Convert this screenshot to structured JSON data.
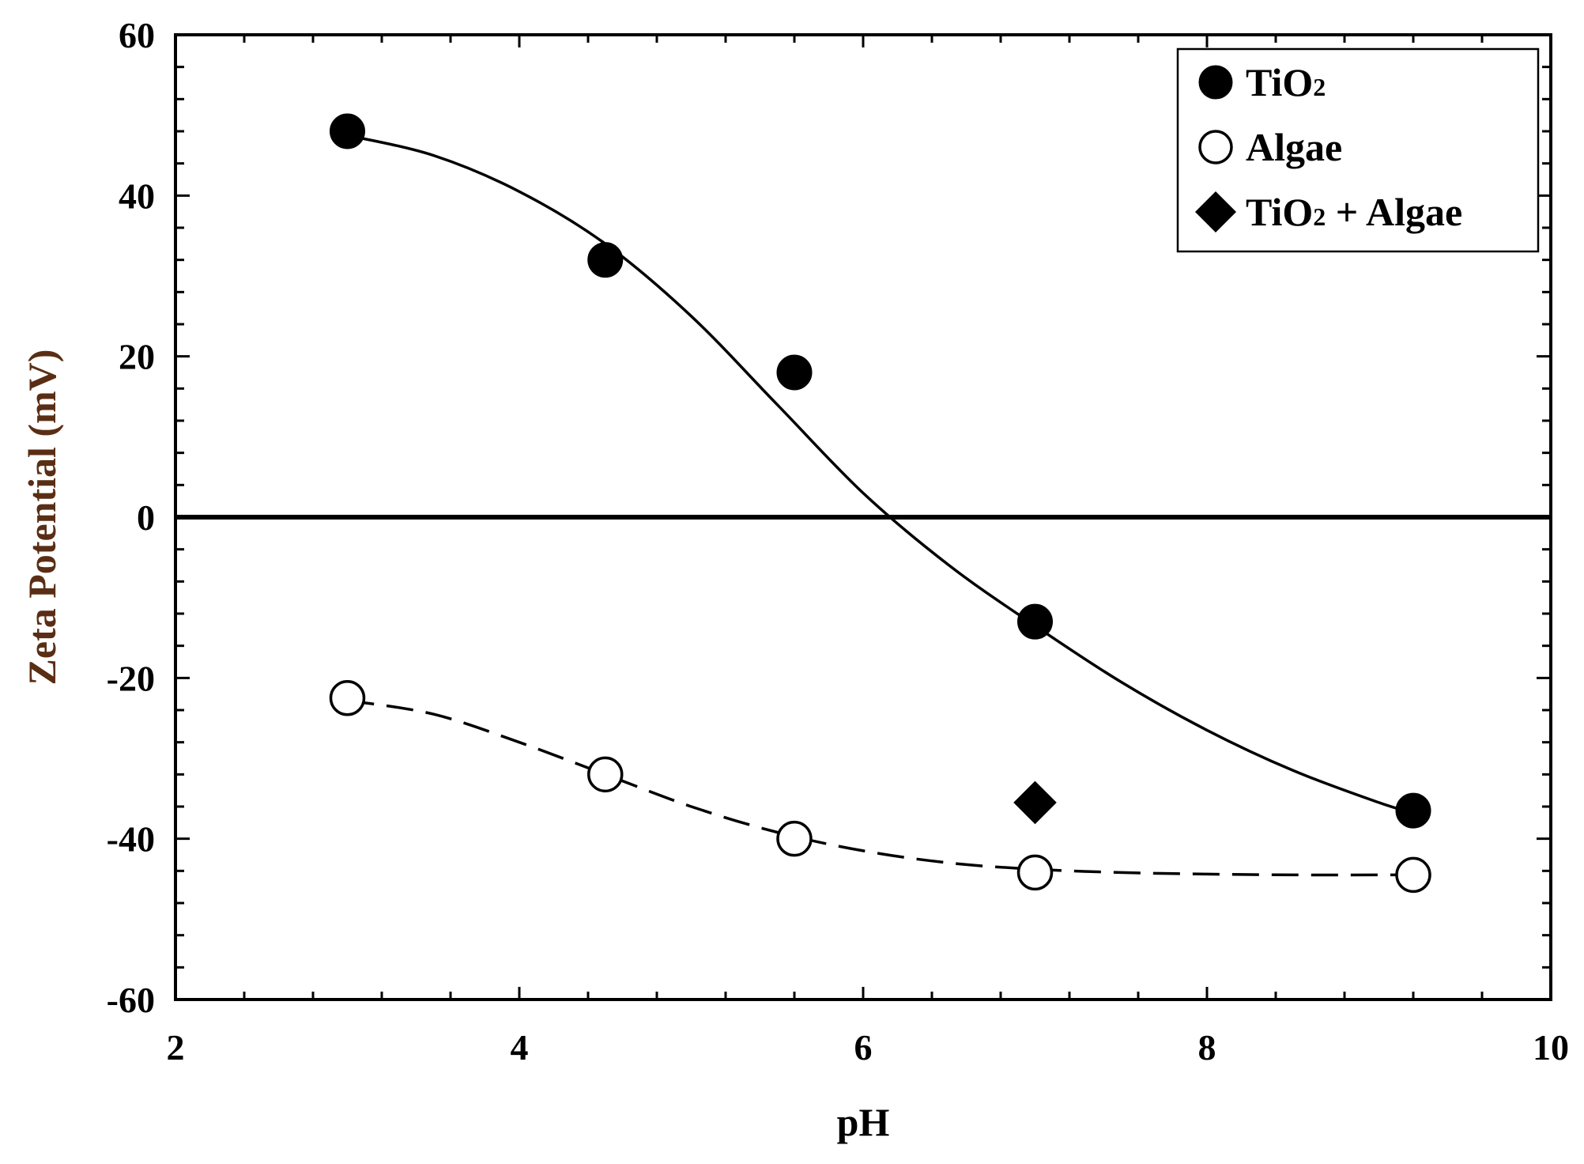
{
  "chart_data": {
    "type": "scatter",
    "title": "",
    "xlabel": "pH",
    "ylabel": "Zeta Potential (mV)",
    "xlim": [
      2,
      10
    ],
    "ylim": [
      -60,
      60
    ],
    "x_ticks": [
      2,
      4,
      6,
      8,
      10
    ],
    "y_ticks": [
      -60,
      -40,
      -20,
      0,
      20,
      40,
      60
    ],
    "x_tick_labels": [
      "2",
      "4",
      "6",
      "8",
      "10"
    ],
    "y_tick_labels": [
      "-60",
      "-40",
      "-20",
      "0",
      "20",
      "40",
      "60"
    ],
    "x_minor_step": 0.4,
    "y_minor_step": 4,
    "reference_line_y": 0,
    "grid": false,
    "legend_position": "top-right",
    "colors": {
      "ink": "#000000",
      "ylabel": "#5a2e14",
      "background": "#ffffff"
    },
    "series": [
      {
        "name": "TiO2",
        "legend_main": "TiO",
        "legend_sub": "2",
        "legend_rest": "",
        "marker": "filled-circle",
        "x": [
          3.0,
          4.5,
          5.6,
          7.0,
          9.2
        ],
        "y": [
          48,
          32,
          18,
          -13,
          -36.5
        ],
        "fit_curve": {
          "style": "solid",
          "x": [
            3.0,
            3.5,
            4.0,
            4.5,
            5.0,
            5.5,
            6.0,
            6.5,
            7.0,
            7.5,
            8.0,
            8.5,
            9.0,
            9.2
          ],
          "y": [
            47.5,
            45,
            40.5,
            34,
            25,
            14,
            3,
            -6,
            -13.5,
            -20.5,
            -26.5,
            -31.5,
            -35.5,
            -36.8
          ]
        }
      },
      {
        "name": "Algae",
        "legend_main": "Algae",
        "legend_sub": "",
        "legend_rest": "",
        "marker": "open-circle",
        "x": [
          3.0,
          4.5,
          5.6,
          7.0,
          9.2
        ],
        "y": [
          -22.5,
          -32,
          -40,
          -44.2,
          -44.5
        ],
        "fit_curve": {
          "style": "dashed",
          "x": [
            3.0,
            3.5,
            4.0,
            4.5,
            5.0,
            5.5,
            6.0,
            6.5,
            7.0,
            7.5,
            8.0,
            8.5,
            9.0,
            9.2
          ],
          "y": [
            -22.8,
            -24.5,
            -28,
            -32,
            -36,
            -39.2,
            -41.5,
            -43,
            -43.8,
            -44.2,
            -44.4,
            -44.5,
            -44.5,
            -44.5
          ]
        }
      },
      {
        "name": "TiO2 + Algae",
        "legend_main": "TiO",
        "legend_sub": "2",
        "legend_rest": " + Algae",
        "marker": "filled-diamond",
        "x": [
          7.0
        ],
        "y": [
          -35.5
        ]
      }
    ]
  }
}
